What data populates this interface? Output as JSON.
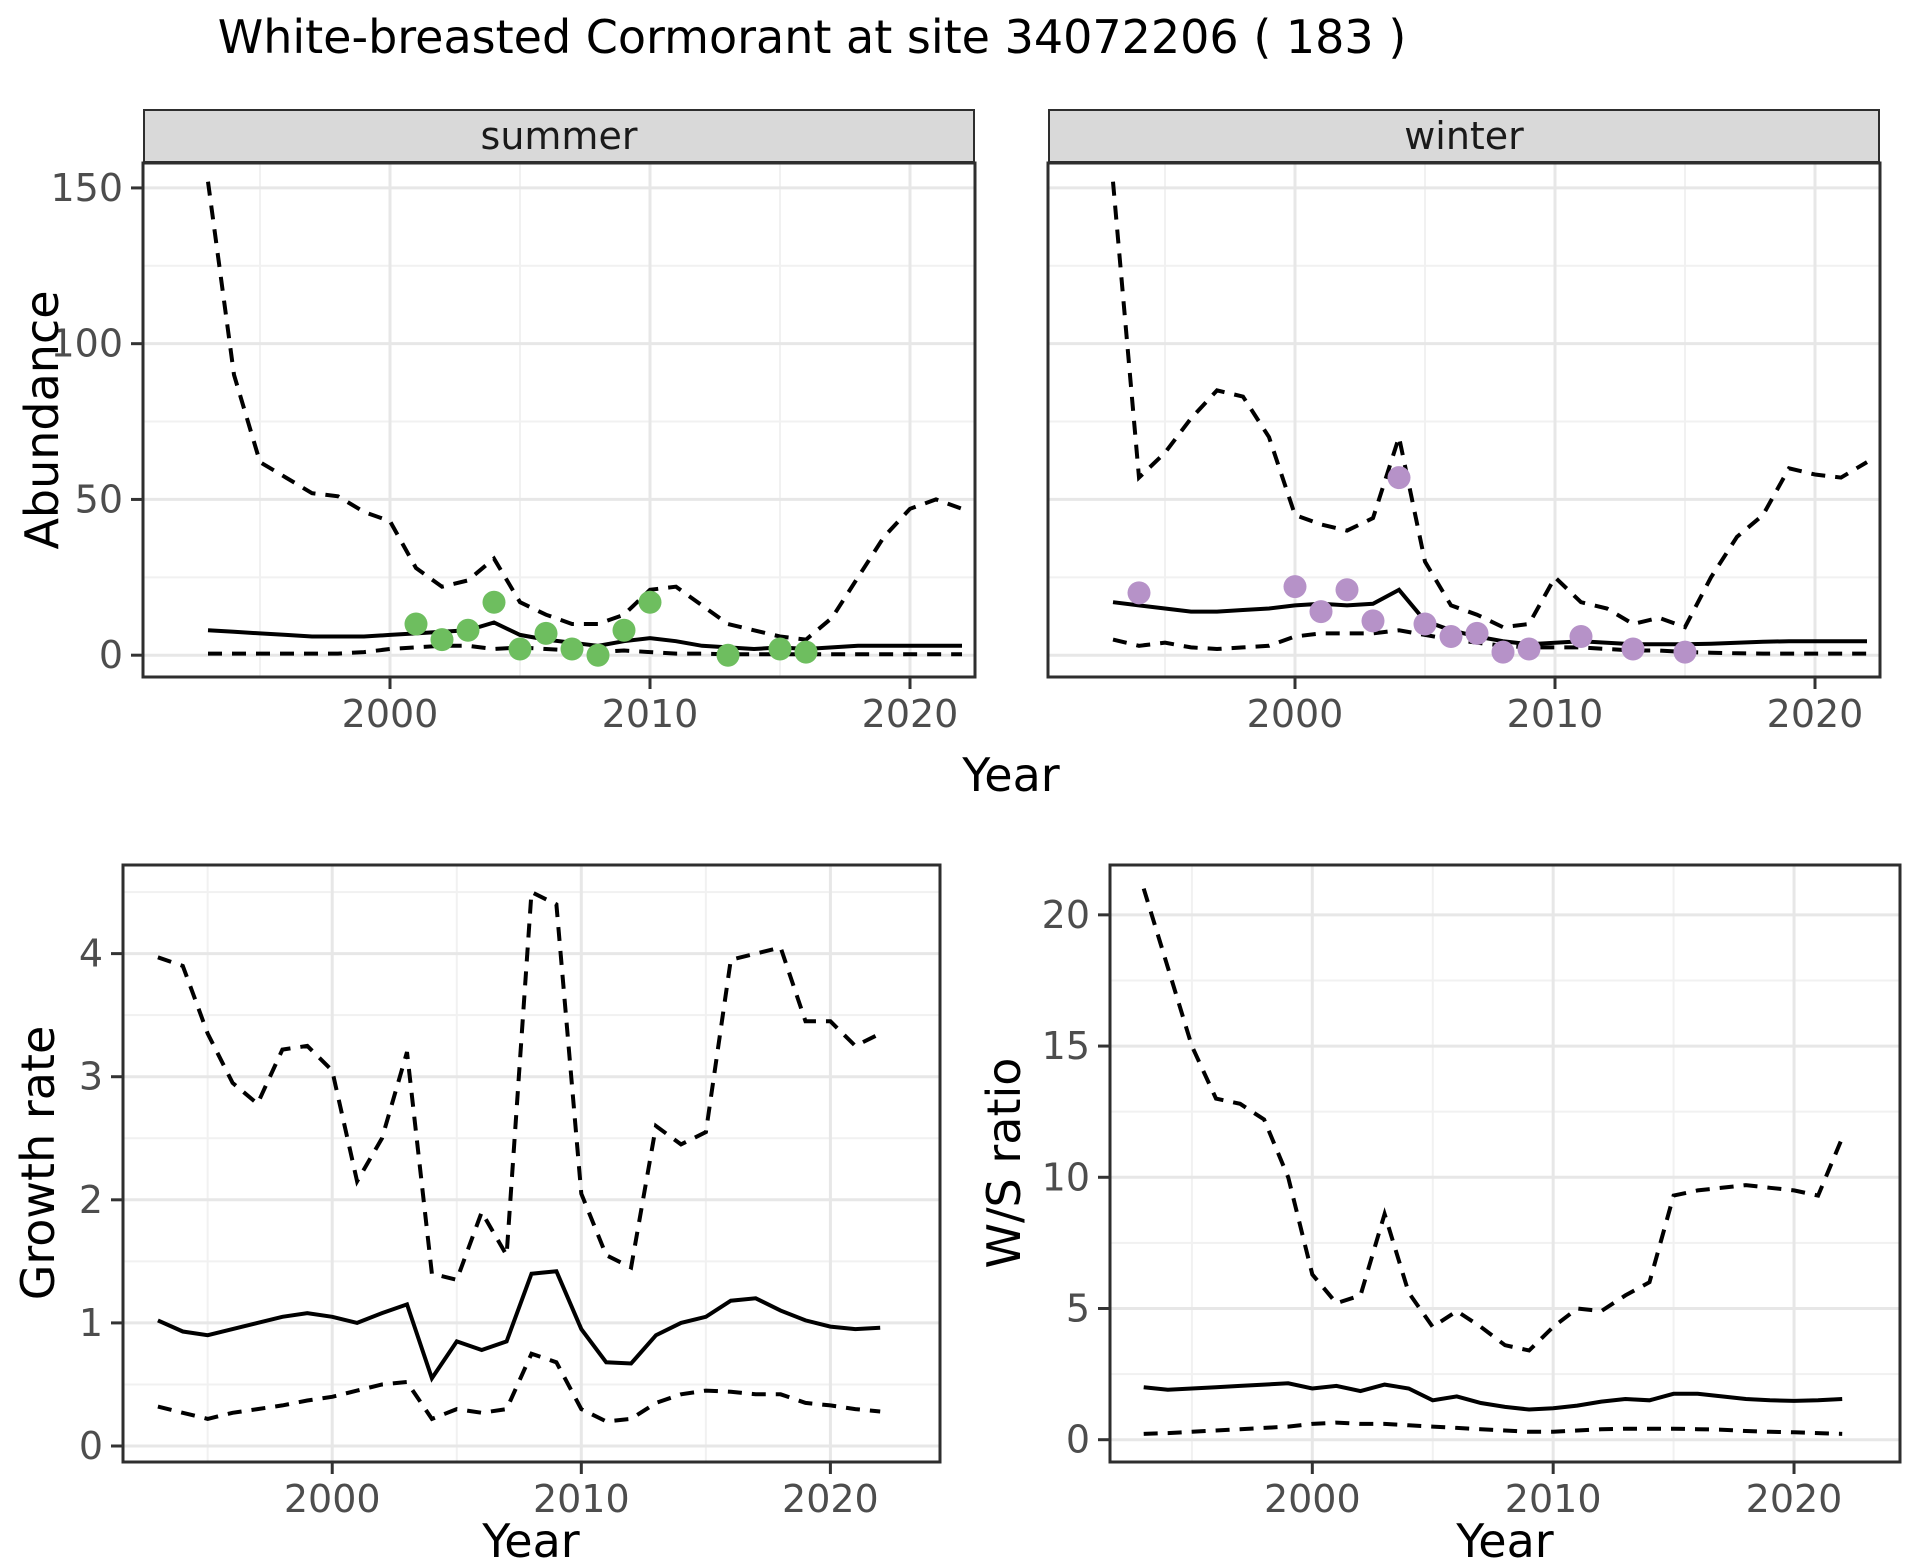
{
  "title": "White-breasted Cormorant at site 34072206 ( 183 )",
  "facets": {
    "summer": "summer",
    "winter": "winter"
  },
  "axis_titles": {
    "y_abundance": "Abundance",
    "y_growth": "Growth rate",
    "y_ws": "W/S ratio",
    "x": "Year"
  },
  "colors": {
    "summer_points": "#6EBE5F",
    "winter_points": "#B692C8",
    "line": "#000000",
    "grid_major": "#E7E7E7",
    "grid_minor": "#F1F1F1",
    "strip_bg": "#D9D9D9",
    "panel_border": "#2E2E2E",
    "tick_text": "#4D4D4D"
  },
  "chart_data": [
    {
      "id": "summer",
      "type": "line",
      "facet_label": "summer",
      "xlabel": "Year",
      "ylabel": "Abundance",
      "xlim": [
        1990.5,
        2022.5
      ],
      "ylim": [
        -7,
        158
      ],
      "xticks": [
        2000,
        2010,
        2020
      ],
      "xticks_minor": [
        1995,
        2005,
        2015
      ],
      "yticks": [
        0,
        50,
        100,
        150
      ],
      "yticks_minor": [
        25,
        75,
        125
      ],
      "x": [
        1993,
        1994,
        1995,
        1996,
        1997,
        1998,
        1999,
        2000,
        2001,
        2002,
        2003,
        2004,
        2005,
        2006,
        2007,
        2008,
        2009,
        2010,
        2011,
        2012,
        2013,
        2014,
        2015,
        2016,
        2017,
        2018,
        2019,
        2020,
        2021,
        2022
      ],
      "series": [
        {
          "name": "upper-ci",
          "style": "dashed",
          "values": [
            152,
            90,
            62,
            57,
            52,
            51,
            46,
            43,
            28,
            22,
            24,
            31,
            17,
            13,
            10,
            10,
            13,
            21,
            22,
            16,
            10,
            8,
            6,
            5,
            12,
            25,
            38,
            47,
            50,
            47
          ]
        },
        {
          "name": "median",
          "style": "solid",
          "values": [
            8,
            7.5,
            7,
            6.5,
            6,
            6,
            6,
            6.5,
            7,
            7.5,
            8,
            10.5,
            6.5,
            5,
            4,
            3,
            4.5,
            5.5,
            4.5,
            3,
            2.5,
            2,
            2.5,
            2,
            2.5,
            3,
            3,
            3,
            3,
            3
          ]
        },
        {
          "name": "lower-ci",
          "style": "dashed",
          "values": [
            0.5,
            0.5,
            0.5,
            0.5,
            0.5,
            0.5,
            1,
            2,
            2.5,
            3,
            3,
            2,
            2.5,
            2,
            1.5,
            1,
            1.5,
            1,
            0.5,
            0.5,
            0.3,
            0.3,
            0.3,
            0.3,
            0.3,
            0.3,
            0.3,
            0.3,
            0.3,
            0.3
          ]
        }
      ],
      "points": {
        "name": "observed-counts",
        "color_key": "summer_points",
        "data": [
          [
            2001,
            10
          ],
          [
            2002,
            5
          ],
          [
            2003,
            8
          ],
          [
            2004,
            17
          ],
          [
            2005,
            2
          ],
          [
            2006,
            7
          ],
          [
            2007,
            2
          ],
          [
            2008,
            0
          ],
          [
            2009,
            8
          ],
          [
            2010,
            17
          ],
          [
            2013,
            0
          ],
          [
            2015,
            2
          ],
          [
            2016,
            1
          ]
        ]
      }
    },
    {
      "id": "winter",
      "type": "line",
      "facet_label": "winter",
      "xlabel": "Year",
      "ylabel": "Abundance",
      "xlim": [
        1990.5,
        2022.5
      ],
      "ylim": [
        -7,
        158
      ],
      "xticks": [
        2000,
        2010,
        2020
      ],
      "xticks_minor": [
        1995,
        2005,
        2015
      ],
      "yticks": [
        0,
        50,
        100,
        150
      ],
      "yticks_minor": [
        25,
        75,
        125
      ],
      "x": [
        1993,
        1994,
        1995,
        1996,
        1997,
        1998,
        1999,
        2000,
        2001,
        2002,
        2003,
        2004,
        2005,
        2006,
        2007,
        2008,
        2009,
        2010,
        2011,
        2012,
        2013,
        2014,
        2015,
        2016,
        2017,
        2018,
        2019,
        2020,
        2021,
        2022
      ],
      "series": [
        {
          "name": "upper-ci",
          "style": "dashed",
          "values": [
            152,
            57,
            65,
            76,
            85,
            83,
            70,
            45,
            42,
            40,
            44,
            70,
            30,
            16,
            13,
            9,
            10,
            25,
            17,
            15,
            10,
            12,
            9,
            25,
            38,
            45,
            60,
            58,
            57,
            62
          ]
        },
        {
          "name": "median",
          "style": "solid",
          "values": [
            17,
            16,
            15,
            14,
            14,
            14.5,
            15,
            16,
            16.5,
            16,
            16.5,
            21,
            11,
            8,
            6,
            4.5,
            3.5,
            4,
            4.5,
            4,
            3.5,
            3.5,
            3.5,
            3.7,
            4,
            4.3,
            4.5,
            4.5,
            4.5,
            4.5
          ]
        },
        {
          "name": "lower-ci",
          "style": "dashed",
          "values": [
            5,
            3,
            4,
            2.5,
            2,
            2.5,
            3,
            6,
            7,
            7,
            7,
            8,
            6.5,
            5,
            4,
            3,
            2.5,
            2.5,
            2.5,
            2,
            1.5,
            1.5,
            1,
            0.8,
            0.6,
            0.5,
            0.5,
            0.5,
            0.5,
            0.5
          ]
        }
      ],
      "points": {
        "name": "observed-counts",
        "color_key": "winter_points",
        "data": [
          [
            1994,
            20
          ],
          [
            2000,
            22
          ],
          [
            2001,
            14
          ],
          [
            2002,
            21
          ],
          [
            2003,
            11
          ],
          [
            2004,
            57
          ],
          [
            2005,
            10
          ],
          [
            2006,
            6
          ],
          [
            2007,
            7
          ],
          [
            2008,
            1
          ],
          [
            2009,
            2
          ],
          [
            2011,
            6
          ],
          [
            2013,
            2
          ],
          [
            2015,
            1
          ]
        ]
      }
    },
    {
      "id": "growth",
      "type": "line",
      "facet_label": "",
      "xlabel": "Year",
      "ylabel": "Growth rate",
      "xlim": [
        1991.6,
        2024.4
      ],
      "ylim": [
        -0.13,
        4.72
      ],
      "xticks": [
        2000,
        2010,
        2020
      ],
      "xticks_minor": [
        1995,
        2005,
        2015
      ],
      "yticks": [
        0,
        1,
        2,
        3,
        4
      ],
      "yticks_minor": [
        0.5,
        1.5,
        2.5,
        3.5,
        4.5
      ],
      "x": [
        1993,
        1994,
        1995,
        1996,
        1997,
        1998,
        1999,
        2000,
        2001,
        2002,
        2003,
        2004,
        2005,
        2006,
        2007,
        2008,
        2009,
        2010,
        2011,
        2012,
        2013,
        2014,
        2015,
        2016,
        2017,
        2018,
        2019,
        2020,
        2021,
        2022
      ],
      "series": [
        {
          "name": "upper-ci",
          "style": "dashed",
          "values": [
            3.97,
            3.9,
            3.35,
            2.95,
            2.78,
            3.22,
            3.25,
            3.05,
            2.15,
            2.5,
            3.2,
            1.4,
            1.35,
            1.9,
            1.55,
            4.5,
            4.4,
            2.05,
            1.55,
            1.45,
            2.6,
            2.45,
            2.55,
            3.95,
            4.0,
            4.05,
            3.45,
            3.45,
            3.25,
            3.35
          ]
        },
        {
          "name": "median",
          "style": "solid",
          "values": [
            1.02,
            0.93,
            0.9,
            0.95,
            1.0,
            1.05,
            1.08,
            1.05,
            1.0,
            1.08,
            1.15,
            0.55,
            0.85,
            0.78,
            0.85,
            1.4,
            1.42,
            0.95,
            0.68,
            0.67,
            0.9,
            1.0,
            1.05,
            1.18,
            1.2,
            1.1,
            1.02,
            0.97,
            0.95,
            0.96
          ]
        },
        {
          "name": "lower-ci",
          "style": "dashed",
          "values": [
            0.32,
            0.27,
            0.22,
            0.27,
            0.3,
            0.33,
            0.37,
            0.4,
            0.45,
            0.5,
            0.52,
            0.22,
            0.3,
            0.27,
            0.3,
            0.75,
            0.68,
            0.3,
            0.2,
            0.22,
            0.35,
            0.42,
            0.45,
            0.44,
            0.42,
            0.42,
            0.35,
            0.33,
            0.3,
            0.28
          ]
        }
      ],
      "points": null
    },
    {
      "id": "ws",
      "type": "line",
      "facet_label": "",
      "xlabel": "Year",
      "ylabel": "W/S ratio",
      "xlim": [
        1991.6,
        2024.4
      ],
      "ylim": [
        -0.85,
        21.9
      ],
      "xticks": [
        2000,
        2010,
        2020
      ],
      "xticks_minor": [
        1995,
        2005,
        2015
      ],
      "yticks": [
        0,
        5,
        10,
        15,
        20
      ],
      "yticks_minor": [
        2.5,
        7.5,
        12.5,
        17.5
      ],
      "x": [
        1993,
        1994,
        1995,
        1996,
        1997,
        1998,
        1999,
        2000,
        2001,
        2002,
        2003,
        2004,
        2005,
        2006,
        2007,
        2008,
        2009,
        2010,
        2011,
        2012,
        2013,
        2014,
        2015,
        2016,
        2017,
        2018,
        2019,
        2020,
        2021,
        2022
      ],
      "series": [
        {
          "name": "upper-ci",
          "style": "dashed",
          "values": [
            21,
            18,
            15,
            13,
            12.8,
            12.2,
            10,
            6.3,
            5.2,
            5.5,
            8.6,
            5.6,
            4.3,
            4.9,
            4.3,
            3.6,
            3.4,
            4.3,
            5.0,
            4.9,
            5.5,
            6.0,
            9.3,
            9.5,
            9.6,
            9.7,
            9.6,
            9.5,
            9.3,
            11.5
          ]
        },
        {
          "name": "median",
          "style": "solid",
          "values": [
            2.0,
            1.9,
            1.95,
            2.0,
            2.05,
            2.1,
            2.15,
            1.95,
            2.05,
            1.85,
            2.1,
            1.95,
            1.5,
            1.65,
            1.4,
            1.25,
            1.15,
            1.2,
            1.3,
            1.45,
            1.55,
            1.5,
            1.75,
            1.75,
            1.65,
            1.55,
            1.5,
            1.48,
            1.5,
            1.55
          ]
        },
        {
          "name": "lower-ci",
          "style": "dashed",
          "values": [
            0.22,
            0.25,
            0.3,
            0.35,
            0.4,
            0.45,
            0.5,
            0.6,
            0.65,
            0.6,
            0.6,
            0.55,
            0.5,
            0.45,
            0.4,
            0.35,
            0.3,
            0.3,
            0.35,
            0.4,
            0.42,
            0.42,
            0.42,
            0.4,
            0.38,
            0.33,
            0.3,
            0.28,
            0.25,
            0.22
          ]
        }
      ],
      "points": null
    }
  ]
}
